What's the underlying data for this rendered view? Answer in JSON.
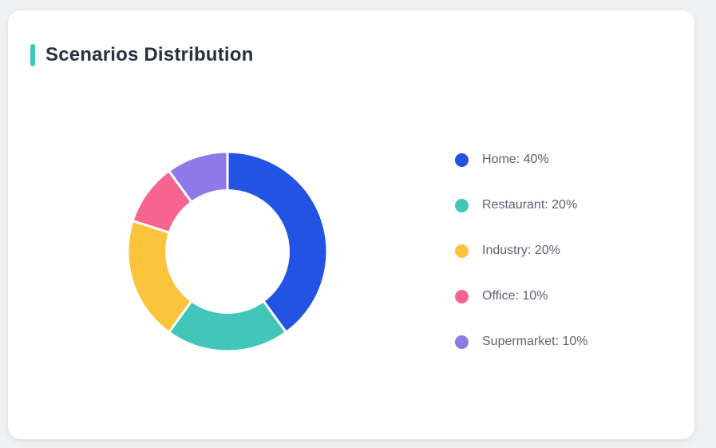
{
  "page": {
    "background_color": "#eff1f3"
  },
  "card": {
    "title": "Scenarios Distribution",
    "accent_color": "#3cc7be",
    "background_color": "#ffffff"
  },
  "chart_data": {
    "type": "pie",
    "variant": "donut",
    "title": "Scenarios Distribution",
    "categories": [
      "Home",
      "Restaurant",
      "Industry",
      "Office",
      "Supermarket"
    ],
    "values": [
      40,
      20,
      20,
      10,
      10
    ],
    "unit": "%",
    "colors": [
      "#2253e2",
      "#41c6b9",
      "#fcc33c",
      "#f7648f",
      "#8f79e8"
    ],
    "start_angle_deg": -90,
    "clockwise": true,
    "inner_radius_ratio": 0.62,
    "slice_border_color": "#ffffff",
    "slice_border_width": 3,
    "legend_position": "right"
  },
  "legend": {
    "items": [
      {
        "label": "Home",
        "value": "40%",
        "display": "Home: 40%",
        "color": "#2253e2"
      },
      {
        "label": "Restaurant",
        "value": "20%",
        "display": "Restaurant: 20%",
        "color": "#41c6b9"
      },
      {
        "label": "Industry",
        "value": "20%",
        "display": "Industry: 20%",
        "color": "#fcc33c"
      },
      {
        "label": "Office",
        "value": "10%",
        "display": "Office: 10%",
        "color": "#f7648f"
      },
      {
        "label": "Supermarket",
        "value": "10%",
        "display": "Supermarket: 10%",
        "color": "#8f79e8"
      }
    ]
  }
}
